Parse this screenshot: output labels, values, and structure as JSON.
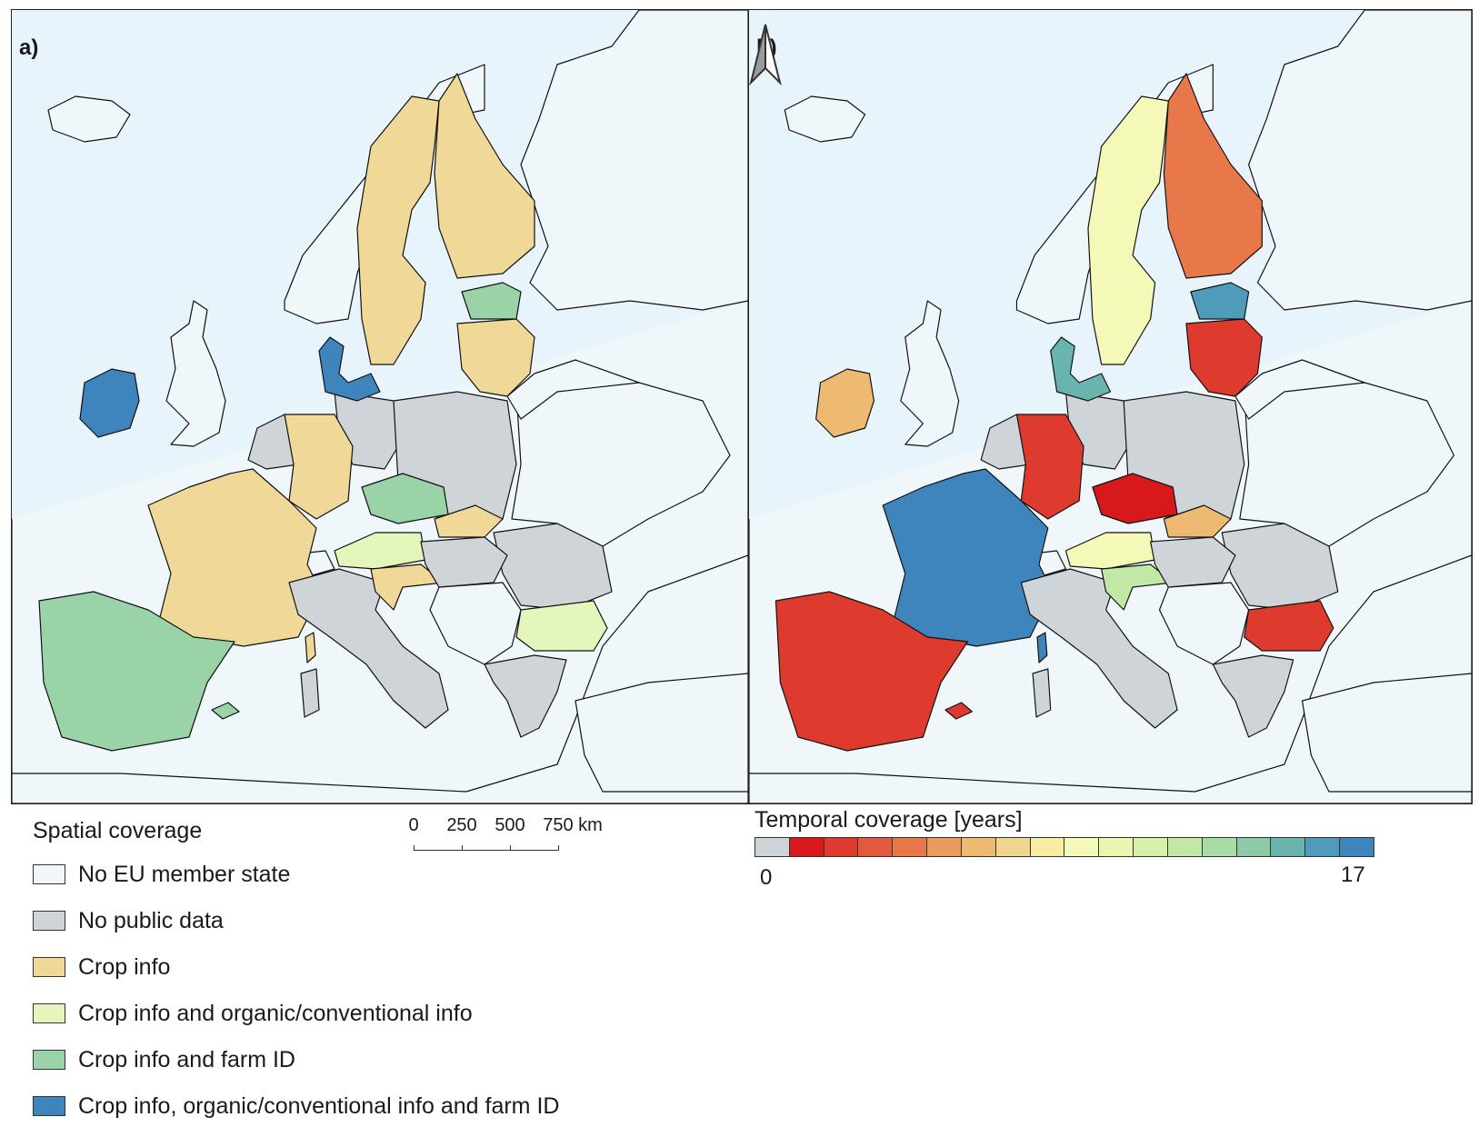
{
  "panels": {
    "a": {
      "label": "a)"
    },
    "b": {
      "label": "b)"
    }
  },
  "colors": {
    "sea": "#e8f4fb",
    "land_bg": "#f0f7fb",
    "border": "#111111"
  },
  "legend_spatial": {
    "title": "Spatial coverage",
    "items": [
      {
        "label": "No EU member state",
        "color": "#f0f7fb"
      },
      {
        "label": "No public data",
        "color": "#cfd4d8"
      },
      {
        "label": "Crop info",
        "color": "#efd898"
      },
      {
        "label": "Crop info and organic/conventional info",
        "color": "#e4f6bc"
      },
      {
        "label": "Crop info and farm ID",
        "color": "#99d3a7"
      },
      {
        "label": "Crop info, organic/conventional info and farm ID",
        "color": "#3f85bd"
      }
    ]
  },
  "scalebar": {
    "ticks": [
      "0",
      "250",
      "500",
      "750 km"
    ]
  },
  "legend_temporal": {
    "title": "Temporal coverage [years]",
    "min_label": "0",
    "max_label": "17",
    "colors": [
      "#cfd4d8",
      "#d7191c",
      "#de3a2e",
      "#e3593b",
      "#e8784a",
      "#eb9a5d",
      "#eeba72",
      "#f0d68c",
      "#f6eca2",
      "#f5f9b8",
      "#e9f6b0",
      "#d7f0aa",
      "#c2e8a5",
      "#a7dca5",
      "#8ccaa8",
      "#6ab4ae",
      "#4e9cba",
      "#3f85bd"
    ]
  },
  "map_a": {
    "regions": [
      {
        "name": "scandinavia-sweden",
        "category": 2
      },
      {
        "name": "finland",
        "category": 2
      },
      {
        "name": "estonia",
        "category": 4
      },
      {
        "name": "latvia-lithuania",
        "category": 2
      },
      {
        "name": "ireland",
        "category": 5
      },
      {
        "name": "denmark",
        "category": 5
      },
      {
        "name": "france",
        "category": 2
      },
      {
        "name": "iberia",
        "category": 4
      },
      {
        "name": "germany-west",
        "category": 2
      },
      {
        "name": "poland",
        "category": 1
      },
      {
        "name": "czechia",
        "category": 4
      },
      {
        "name": "slovakia",
        "category": 2
      },
      {
        "name": "austria",
        "category": 3
      },
      {
        "name": "italy",
        "category": 1
      },
      {
        "name": "romania",
        "category": 1
      },
      {
        "name": "bulgaria",
        "category": 3
      },
      {
        "name": "greece",
        "category": 1
      },
      {
        "name": "croatia",
        "category": 2
      },
      {
        "name": "hungary",
        "category": 1
      },
      {
        "name": "balearics",
        "category": 4
      },
      {
        "name": "corsica",
        "category": 2
      },
      {
        "name": "sardinia",
        "category": 1
      }
    ]
  },
  "map_b": {
    "regions": [
      {
        "name": "scandinavia-sweden",
        "level": 9
      },
      {
        "name": "finland",
        "level": 4
      },
      {
        "name": "estonia",
        "level": 16
      },
      {
        "name": "latvia-lithuania",
        "level": 2
      },
      {
        "name": "ireland",
        "level": 6
      },
      {
        "name": "denmark",
        "level": 15
      },
      {
        "name": "france",
        "level": 17
      },
      {
        "name": "iberia",
        "level": 2
      },
      {
        "name": "germany-west",
        "level": 2
      },
      {
        "name": "poland",
        "level": 0
      },
      {
        "name": "czechia",
        "level": 1
      },
      {
        "name": "slovakia",
        "level": 6
      },
      {
        "name": "austria",
        "level": 9
      },
      {
        "name": "italy",
        "level": 0
      },
      {
        "name": "romania",
        "level": 0
      },
      {
        "name": "bulgaria",
        "level": 2
      },
      {
        "name": "greece",
        "level": 0
      },
      {
        "name": "croatia",
        "level": 12
      },
      {
        "name": "hungary",
        "level": 0
      },
      {
        "name": "balearics",
        "level": 2
      },
      {
        "name": "corsica",
        "level": 17
      },
      {
        "name": "sardinia",
        "level": 0
      }
    ]
  }
}
